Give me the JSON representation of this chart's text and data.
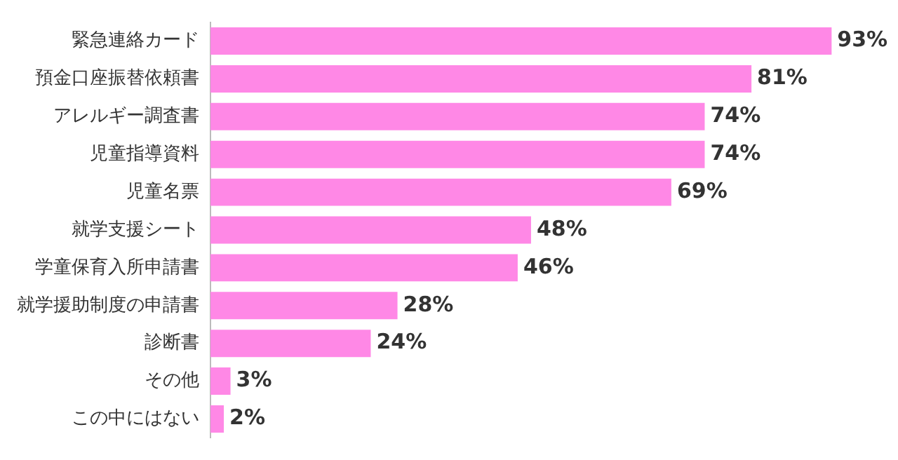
{
  "chart_data": {
    "type": "bar",
    "orientation": "horizontal",
    "categories": [
      "緊急連絡カード",
      "預金口座振替依頼書",
      "アレルギー調査書",
      "児童指導資料",
      "児童名票",
      "就学支援シート",
      "学童保育入所申請書",
      "就学援助制度の申請書",
      "診断書",
      "その他",
      "この中にはない"
    ],
    "values": [
      93,
      81,
      74,
      74,
      69,
      48,
      46,
      28,
      24,
      3,
      2
    ],
    "value_labels": [
      "93%",
      "81%",
      "74%",
      "74%",
      "69%",
      "48%",
      "46%",
      "28%",
      "24%",
      "3%",
      "2%"
    ],
    "color": "#ff88e6",
    "legend": false
  }
}
